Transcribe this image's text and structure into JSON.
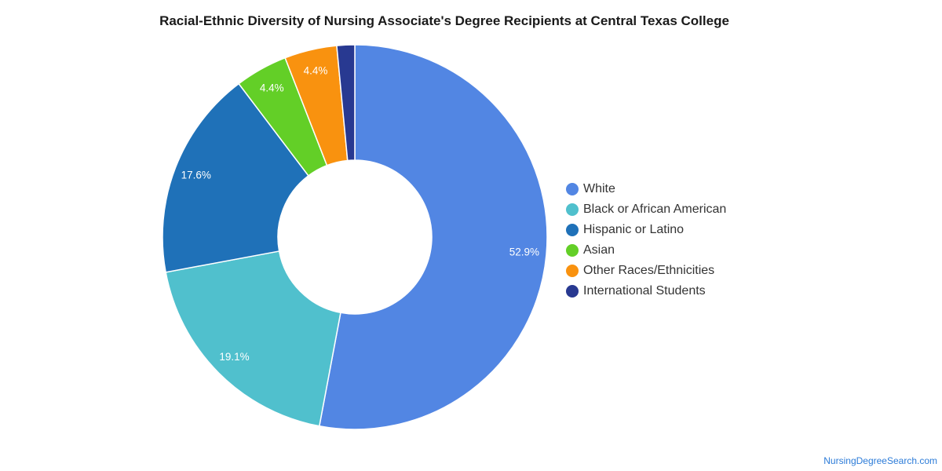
{
  "chart_data": {
    "type": "pie",
    "title": "Racial-Ethnic Diversity of Nursing Associate's Degree Recipients at Central Texas College",
    "categories": [
      "White",
      "Black or African American",
      "Hispanic or Latino",
      "Asian",
      "Other Races/Ethnicities",
      "International Students"
    ],
    "values": [
      52.9,
      19.1,
      17.6,
      4.4,
      4.4,
      1.5
    ],
    "value_labels": [
      "52.9%",
      "19.1%",
      "17.6%",
      "4.4%",
      "4.4%",
      ""
    ],
    "colors": [
      "#5286e3",
      "#50c0cd",
      "#1f71b8",
      "#63cf27",
      "#f9920f",
      "#283991"
    ],
    "donut": true,
    "legend_position": "right"
  },
  "source_credit": "NursingDegreeSearch.com"
}
